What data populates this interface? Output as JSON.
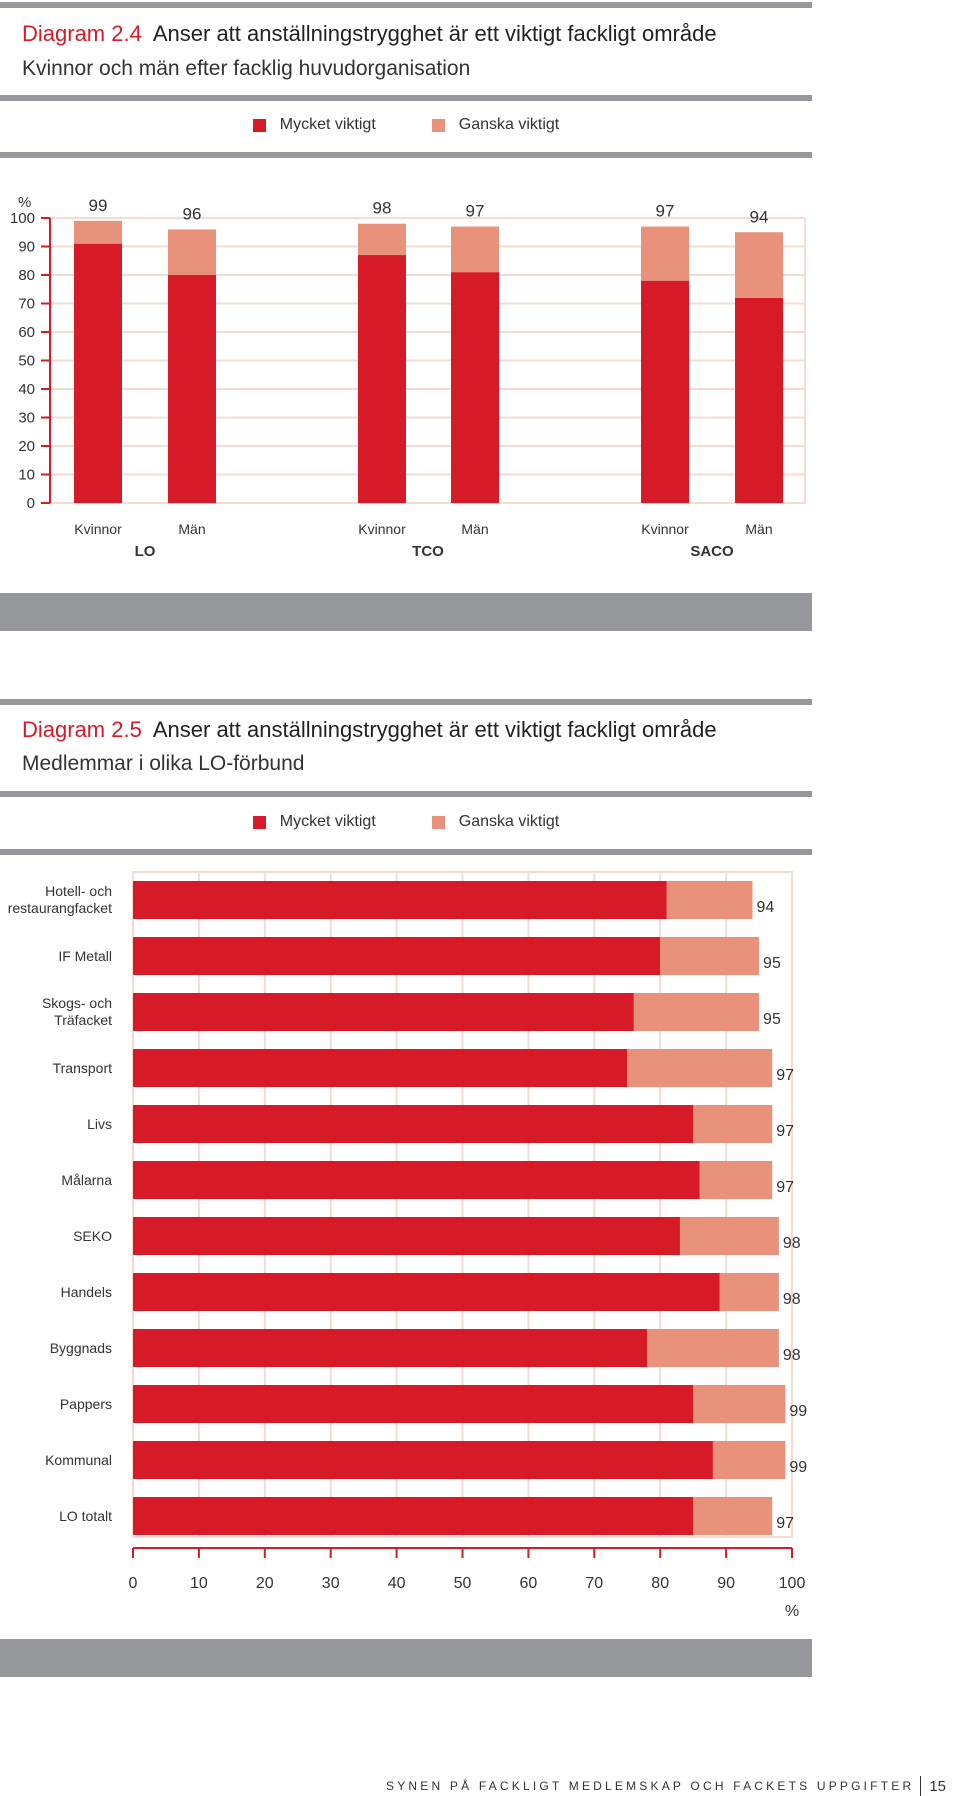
{
  "colors": {
    "primary": "#d71a28",
    "secondary": "#e8917b",
    "rule": "#97989c",
    "grid": "#f3dcd2"
  },
  "diagram1": {
    "number": "Diagram 2.4",
    "title": "Anser att anställningstrygghet är ett viktigt fackligt område",
    "subtitle": "Kvinnor och män efter facklig huvudorganisation",
    "legend": {
      "primary": "Mycket viktigt",
      "secondary": "Ganska viktigt"
    }
  },
  "diagram2": {
    "number": "Diagram 2.5",
    "title": "Anser att anställningstrygghet är ett viktigt fackligt område",
    "subtitle": "Medlemmar i olika LO-förbund",
    "legend": {
      "primary": "Mycket viktigt",
      "secondary": "Ganska viktigt"
    }
  },
  "chart_data": [
    {
      "type": "bar",
      "orientation": "vertical",
      "stacked": true,
      "ylabel": "%",
      "ylim": [
        0,
        100
      ],
      "yticks": [
        0,
        10,
        20,
        30,
        40,
        50,
        60,
        70,
        80,
        90,
        100
      ],
      "groups": [
        {
          "name": "LO",
          "bars": [
            {
              "label": "Kvinnor",
              "mycket": 91,
              "ganska": 8,
              "total": "99"
            },
            {
              "label": "Män",
              "mycket": 80,
              "ganska": 16,
              "total": "96"
            }
          ]
        },
        {
          "name": "TCO",
          "bars": [
            {
              "label": "Kvinnor",
              "mycket": 87,
              "ganska": 11,
              "total": "98"
            },
            {
              "label": "Män",
              "mycket": 81,
              "ganska": 16,
              "total": "97"
            }
          ]
        },
        {
          "name": "SACO",
          "bars": [
            {
              "label": "Kvinnor",
              "mycket": 78,
              "ganska": 19,
              "total": "97"
            },
            {
              "label": "Män",
              "mycket": 72,
              "ganska": 23,
              "total": "94"
            }
          ]
        }
      ],
      "series": [
        "Mycket viktigt",
        "Ganska viktigt"
      ]
    },
    {
      "type": "bar",
      "orientation": "horizontal",
      "stacked": true,
      "xlabel": "%",
      "xlim": [
        0,
        100
      ],
      "xticks": [
        0,
        10,
        20,
        30,
        40,
        50,
        60,
        70,
        80,
        90,
        100
      ],
      "categories": [
        {
          "label": [
            "Hotell- och",
            "restaurangfacket"
          ],
          "mycket": 81,
          "ganska": 13,
          "total": "94"
        },
        {
          "label": [
            "IF Metall"
          ],
          "mycket": 80,
          "ganska": 15,
          "total": "95"
        },
        {
          "label": [
            "Skogs- och",
            "Träfacket"
          ],
          "mycket": 76,
          "ganska": 19,
          "total": "95"
        },
        {
          "label": [
            "Transport"
          ],
          "mycket": 75,
          "ganska": 22,
          "total": "97"
        },
        {
          "label": [
            "Livs"
          ],
          "mycket": 85,
          "ganska": 12,
          "total": "97"
        },
        {
          "label": [
            "Målarna"
          ],
          "mycket": 86,
          "ganska": 11,
          "total": "97"
        },
        {
          "label": [
            "SEKO"
          ],
          "mycket": 83,
          "ganska": 15,
          "total": "98"
        },
        {
          "label": [
            "Handels"
          ],
          "mycket": 89,
          "ganska": 9,
          "total": "98"
        },
        {
          "label": [
            "Byggnads"
          ],
          "mycket": 78,
          "ganska": 20,
          "total": "98"
        },
        {
          "label": [
            "Pappers"
          ],
          "mycket": 85,
          "ganska": 14,
          "total": "99"
        },
        {
          "label": [
            "Kommunal"
          ],
          "mycket": 88,
          "ganska": 11,
          "total": "99"
        },
        {
          "label": [
            "LO totalt"
          ],
          "mycket": 85,
          "ganska": 12,
          "total": "97"
        }
      ],
      "series": [
        "Mycket viktigt",
        "Ganska viktigt"
      ]
    }
  ],
  "footer": {
    "text": "SYNEN PÅ FACKLIGT MEDLEMSKAP OCH FACKETS UPPGIFTER",
    "page": "15"
  }
}
